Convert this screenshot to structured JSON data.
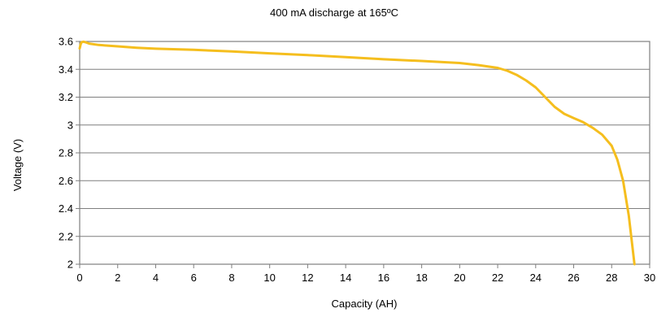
{
  "chart_data": {
    "type": "line",
    "title": "400 mA discharge at 165ºC",
    "xlabel": "Capacity (AH)",
    "ylabel": "Voltage (V)",
    "xlim": [
      0,
      30
    ],
    "ylim": [
      2,
      3.6
    ],
    "xticks": [
      "0",
      "2",
      "4",
      "6",
      "8",
      "10",
      "12",
      "14",
      "16",
      "18",
      "20",
      "22",
      "24",
      "26",
      "28",
      "30"
    ],
    "yticks": [
      "2",
      "2.2",
      "2.4",
      "2.6",
      "2.8",
      "3",
      "3.2",
      "3.4",
      "3.6"
    ],
    "grid": true,
    "line_color": "#F5BE1E",
    "series": [
      {
        "x": [
          0,
          0.05,
          0.1,
          0.2,
          0.3,
          0.5,
          1,
          2,
          3,
          4,
          6,
          8,
          10,
          12,
          14,
          16,
          18,
          20,
          21,
          22,
          22.5,
          23,
          23.5,
          24,
          24.5,
          25,
          25.5,
          26,
          26.5,
          27,
          27.5,
          28,
          28.3,
          28.6,
          28.9,
          29.2
        ],
        "y": [
          3.55,
          3.58,
          3.595,
          3.598,
          3.595,
          3.585,
          3.575,
          3.565,
          3.555,
          3.548,
          3.54,
          3.528,
          3.515,
          3.502,
          3.488,
          3.472,
          3.46,
          3.445,
          3.43,
          3.41,
          3.39,
          3.36,
          3.32,
          3.27,
          3.2,
          3.13,
          3.08,
          3.05,
          3.02,
          2.98,
          2.93,
          2.85,
          2.75,
          2.6,
          2.35,
          2.0
        ]
      }
    ]
  }
}
